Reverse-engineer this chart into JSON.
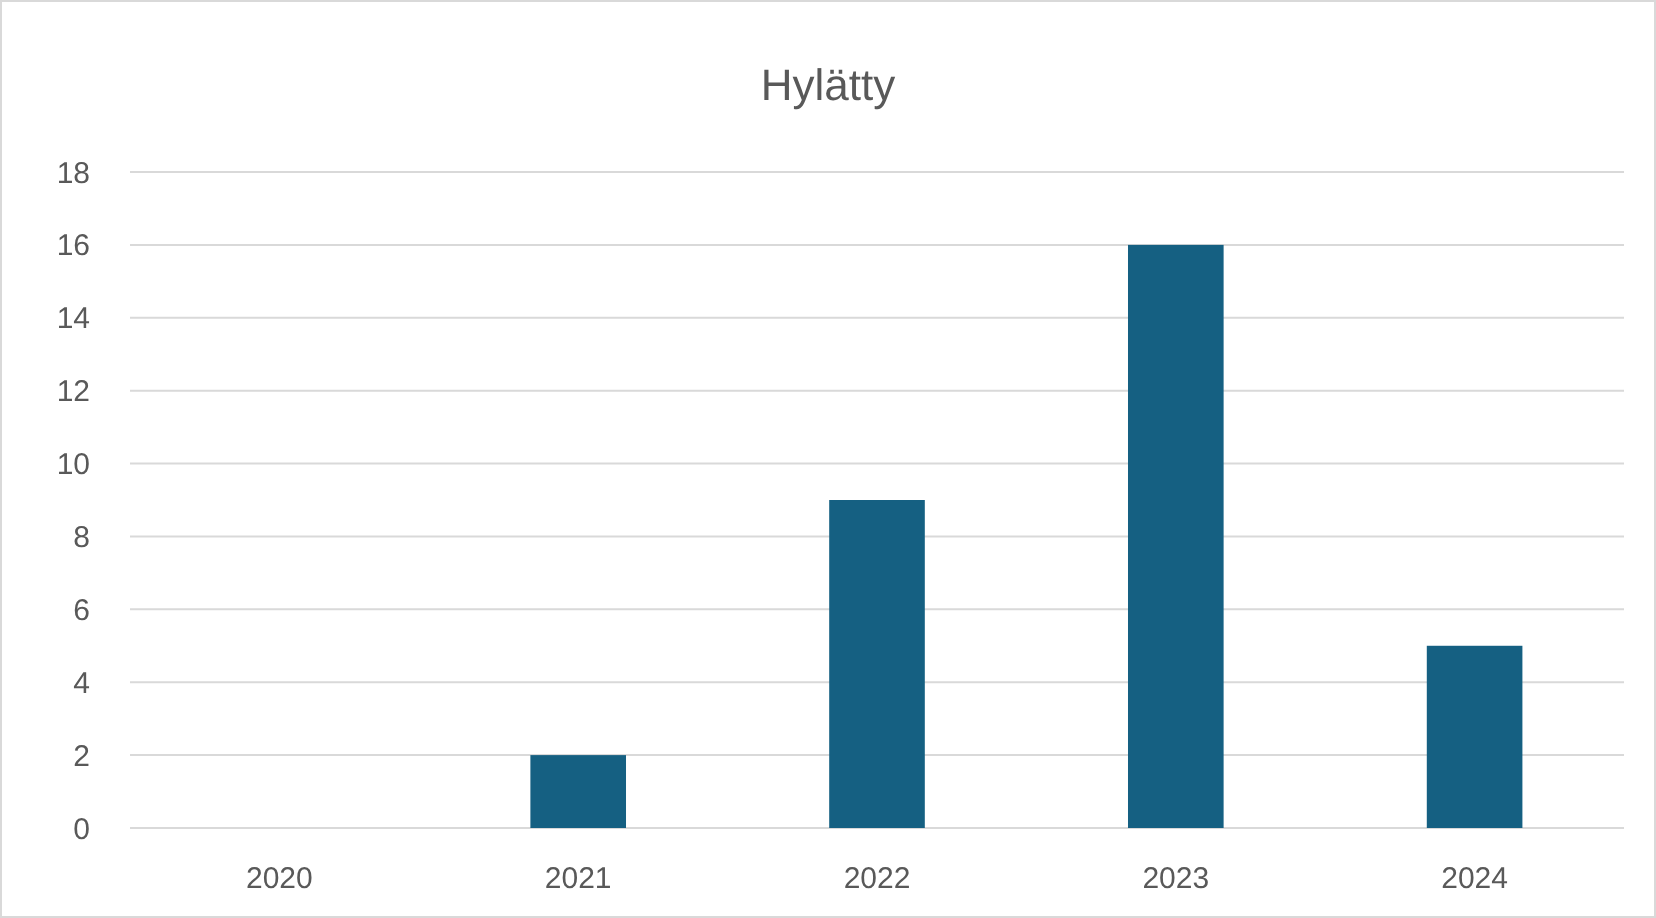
{
  "chart_data": {
    "type": "bar",
    "title": "Hylätty",
    "categories": [
      "2020",
      "2021",
      "2022",
      "2023",
      "2024"
    ],
    "values": [
      0,
      2,
      9,
      16,
      5
    ],
    "color": "#156082",
    "ylim": [
      0,
      18
    ],
    "yticks": [
      0,
      2,
      4,
      6,
      8,
      10,
      12,
      14,
      16,
      18
    ],
    "grid": "y"
  }
}
